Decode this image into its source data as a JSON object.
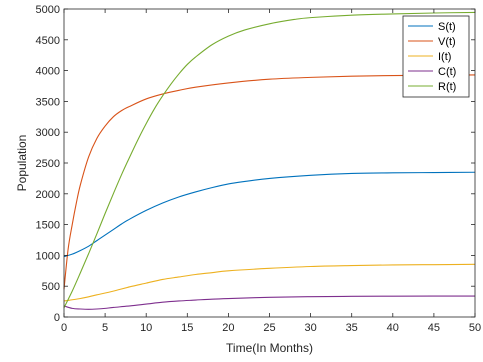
{
  "chart_data": {
    "type": "line",
    "title": "",
    "xlabel": "Time(In Months)",
    "ylabel": "Population",
    "xlim": [
      0,
      50
    ],
    "ylim": [
      0,
      5000
    ],
    "xticks": [
      0,
      5,
      10,
      15,
      20,
      25,
      30,
      35,
      40,
      45,
      50
    ],
    "yticks": [
      0,
      500,
      1000,
      1500,
      2000,
      2500,
      3000,
      3500,
      4000,
      4500,
      5000
    ],
    "grid": false,
    "legend_position": "top-right",
    "series": [
      {
        "name": "S(t)",
        "color": "#0072BD",
        "x": [
          0,
          1,
          2,
          3,
          4,
          5,
          6,
          7,
          8,
          10,
          12,
          14,
          16,
          18,
          20,
          22,
          25,
          30,
          35,
          40,
          45,
          50
        ],
        "y": [
          980,
          1020,
          1080,
          1150,
          1240,
          1330,
          1420,
          1510,
          1590,
          1730,
          1850,
          1950,
          2030,
          2100,
          2160,
          2200,
          2250,
          2300,
          2330,
          2340,
          2345,
          2350
        ]
      },
      {
        "name": "V(t)",
        "color": "#D95319",
        "x": [
          0,
          0.5,
          1,
          1.5,
          2,
          3,
          4,
          5,
          6,
          7,
          8,
          10,
          12,
          14,
          16,
          20,
          25,
          30,
          35,
          40,
          45,
          50
        ],
        "y": [
          450,
          1100,
          1500,
          1850,
          2150,
          2600,
          2900,
          3100,
          3250,
          3350,
          3420,
          3540,
          3620,
          3680,
          3730,
          3800,
          3860,
          3890,
          3910,
          3920,
          3925,
          3930
        ]
      },
      {
        "name": "I(t)",
        "color": "#EDB120",
        "x": [
          0,
          2,
          4,
          6,
          8,
          10,
          12,
          14,
          16,
          18,
          20,
          25,
          30,
          35,
          40,
          45,
          50
        ],
        "y": [
          260,
          300,
          360,
          420,
          490,
          550,
          610,
          650,
          690,
          720,
          750,
          790,
          820,
          835,
          845,
          850,
          855
        ]
      },
      {
        "name": "C(t)",
        "color": "#7E2F8E",
        "x": [
          0,
          1,
          2,
          3,
          4,
          5,
          6,
          8,
          10,
          12,
          14,
          16,
          18,
          20,
          25,
          30,
          35,
          40,
          45,
          50
        ],
        "y": [
          180,
          140,
          130,
          125,
          130,
          140,
          155,
          180,
          210,
          240,
          260,
          275,
          290,
          300,
          320,
          330,
          335,
          338,
          340,
          340
        ]
      },
      {
        "name": "R(t)",
        "color": "#77AC30",
        "x": [
          0,
          1,
          2,
          3,
          4,
          5,
          6,
          7,
          8,
          9,
          10,
          11,
          12,
          13,
          14,
          15,
          16,
          18,
          20,
          22,
          25,
          28,
          30,
          35,
          40,
          45,
          50
        ],
        "y": [
          150,
          420,
          720,
          1030,
          1350,
          1680,
          2000,
          2310,
          2600,
          2880,
          3140,
          3380,
          3590,
          3780,
          3950,
          4100,
          4220,
          4420,
          4560,
          4660,
          4760,
          4830,
          4860,
          4900,
          4920,
          4935,
          4945
        ]
      }
    ]
  }
}
